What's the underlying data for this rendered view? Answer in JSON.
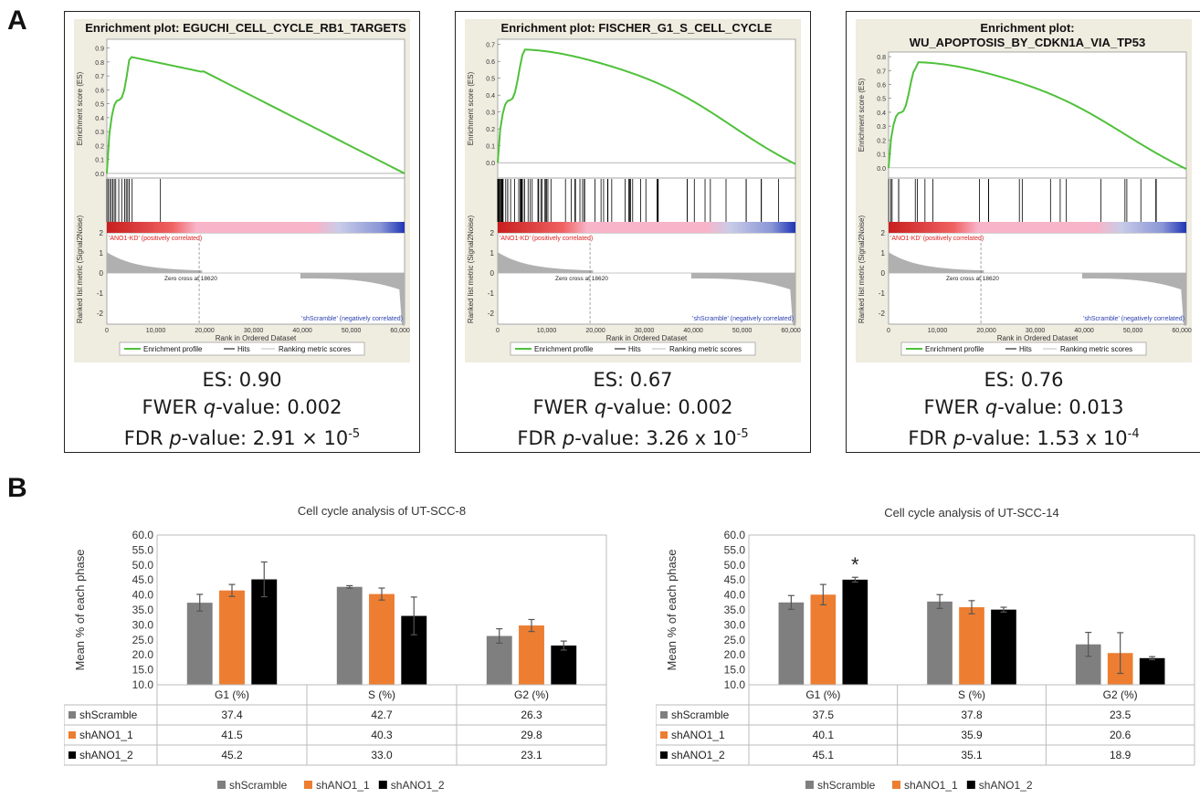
{
  "panels": {
    "a": "A",
    "b": "B"
  },
  "gsea_common": {
    "y_label_top": "Enrichment score (ES)",
    "y_label_bottom": "Ranked list metric (Signal2Noise)",
    "x_label": "Rank in Ordered Dataset",
    "pos_label": "'ANO1-KD' (positively correlated)",
    "neg_label": "'shScramble' (negatively correlated)",
    "zero_cross": "Zero cross at 18620",
    "legend": [
      "Enrichment profile",
      "Hits",
      "Ranking metric scores"
    ],
    "x_ticks": [
      "0",
      "10,000",
      "20,000",
      "30,000",
      "40,000",
      "50,000",
      "60,000"
    ],
    "metric_ticks": [
      "2",
      "1",
      "0",
      "-1",
      "-2"
    ]
  },
  "gsea": [
    {
      "title_lines": [
        "Enrichment plot: EGUCHI_CELL_CYCLE_RB1_TARGETS"
      ],
      "es": "ES: 0.90",
      "fwer_prefix": "FWER ",
      "fwer_q": "q",
      "fwer_suffix": "-value: 0.002",
      "fdr_prefix": "FDR ",
      "fdr_p": "p",
      "fdr_value": "-value: 2.91 × 10",
      "fdr_exp": "-5",
      "y_ticks": [
        "0.9",
        "0.8",
        "0.7",
        "0.6",
        "0.5",
        "0.4",
        "0.3",
        "0.2",
        "0.1",
        "0.0"
      ],
      "y_max": 0.95,
      "y_min": -0.02
    },
    {
      "title_lines": [
        "Enrichment plot: FISCHER_G1_S_CELL_CYCLE"
      ],
      "es": "ES: 0.67",
      "fwer_prefix": "FWER ",
      "fwer_q": "q",
      "fwer_suffix": "-value: 0.002",
      "fdr_prefix": "FDR ",
      "fdr_p": "p",
      "fdr_value": "-value: 3.26 x 10",
      "fdr_exp": "-5",
      "y_ticks": [
        "0.7",
        "0.6",
        "0.5",
        "0.4",
        "0.3",
        "0.2",
        "0.1",
        "0.0"
      ],
      "y_max": 0.72,
      "y_min": -0.08
    },
    {
      "title_lines": [
        "Enrichment plot:",
        "WU_APOPTOSIS_BY_CDKN1A_VIA_TP53"
      ],
      "es": "ES: 0.76",
      "fwer_prefix": "FWER ",
      "fwer_q": "q",
      "fwer_suffix": "-value: 0.013",
      "fdr_prefix": "FDR ",
      "fdr_p": "p",
      "fdr_value": "-value: 1.53 x 10",
      "fdr_exp": "-4",
      "y_ticks": [
        "0.8",
        "0.7",
        "0.6",
        "0.5",
        "0.4",
        "0.3",
        "0.2",
        "0.1",
        "0.0"
      ],
      "y_max": 0.82,
      "y_min": -0.06
    }
  ],
  "colors": {
    "es_line": "#4fc13a",
    "gsea_bg": "#efece0",
    "pos": "#e02020",
    "neg": "#2a3fb0",
    "shScramble": "#7f7f7f",
    "shANO1_1": "#ed7d31",
    "shANO1_2": "#000000"
  },
  "chart_data": [
    {
      "type": "bar",
      "title": "Cell cycle analysis of UT-SCC-8",
      "ylabel": "Mean % of each phase",
      "categories": [
        "G1 (%)",
        "S (%)",
        "G2 (%)"
      ],
      "ylim": [
        10.0,
        60.0
      ],
      "y_ticks": [
        "60.0",
        "55.0",
        "50.0",
        "45.0",
        "40.0",
        "35.0",
        "30.0",
        "25.0",
        "20.0",
        "15.0",
        "10.0"
      ],
      "series": [
        {
          "name": "shScramble",
          "values": [
            37.4,
            42.7,
            26.3
          ],
          "errors": [
            2.8,
            0.4,
            2.4
          ],
          "labels": [
            "37.4",
            "42.7",
            "26.3"
          ]
        },
        {
          "name": "shANO1_1",
          "values": [
            41.5,
            40.3,
            29.8
          ],
          "errors": [
            2.0,
            2.0,
            2.0
          ],
          "labels": [
            "41.5",
            "40.3",
            "29.8"
          ]
        },
        {
          "name": "shANO1_2",
          "values": [
            45.2,
            33.0,
            23.1
          ],
          "errors": [
            5.8,
            6.3,
            1.5
          ],
          "labels": [
            "45.2",
            "33.0",
            "23.1"
          ]
        }
      ],
      "annotations": [],
      "legend": "bottom"
    },
    {
      "type": "bar",
      "title": "Cell cycle analysis of UT-SCC-14",
      "ylabel": "Mean % of each phase",
      "categories": [
        "G1 (%)",
        "S (%)",
        "G2 (%)"
      ],
      "ylim": [
        10.0,
        60.0
      ],
      "y_ticks": [
        "60.0",
        "55.0",
        "50.0",
        "45.0",
        "40.0",
        "35.0",
        "30.0",
        "25.0",
        "20.0",
        "15.0",
        "10.0"
      ],
      "series": [
        {
          "name": "shScramble",
          "values": [
            37.5,
            37.8,
            23.5
          ],
          "errors": [
            2.3,
            2.3,
            4.0
          ],
          "labels": [
            "37.5",
            "37.8",
            "23.5"
          ]
        },
        {
          "name": "shANO1_1",
          "values": [
            40.1,
            35.9,
            20.6
          ],
          "errors": [
            3.4,
            2.2,
            6.8
          ],
          "labels": [
            "40.1",
            "35.9",
            "20.6"
          ]
        },
        {
          "name": "shANO1_2",
          "values": [
            45.1,
            35.1,
            18.9
          ],
          "errors": [
            0.8,
            0.8,
            0.5
          ],
          "labels": [
            "45.1",
            "35.1",
            "18.9"
          ]
        }
      ],
      "annotations": [
        {
          "text": "*",
          "category": 0,
          "series": 2
        }
      ],
      "legend": "bottom"
    }
  ]
}
